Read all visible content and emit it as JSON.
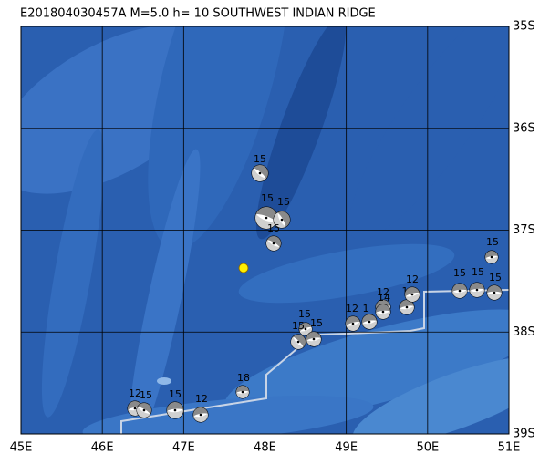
{
  "title": "E201804030457A M=5.0 h= 10 SOUTHWEST INDIAN RIDGE",
  "lat_labels": [
    "35S",
    "36S",
    "37S",
    "38S",
    "39S"
  ],
  "lon_labels": [
    "45E",
    "46E",
    "47E",
    "48E",
    "49E",
    "50E",
    "51E"
  ],
  "mechanism_labels": [
    "15",
    "15",
    "15",
    "15",
    "15",
    "15",
    "15",
    "12",
    "1",
    "12",
    "14",
    "1",
    "12",
    "15",
    "15",
    "15",
    "15",
    "12",
    "15",
    "15",
    "12",
    "18"
  ]
}
